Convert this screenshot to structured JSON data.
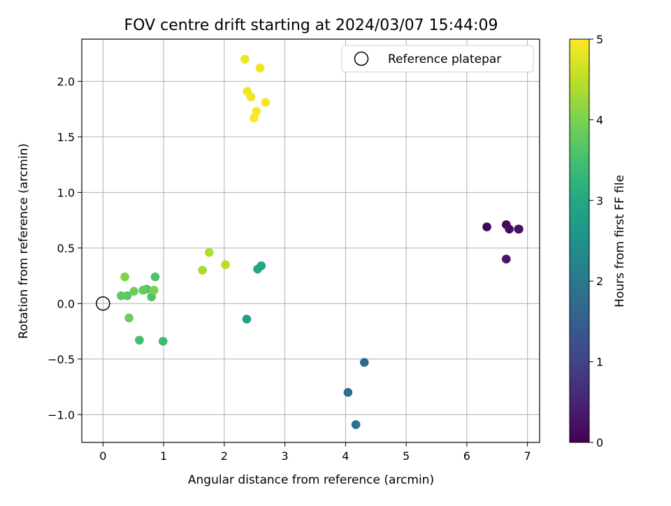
{
  "chart_data": {
    "type": "scatter",
    "title": "FOV centre drift starting at 2024/03/07 15:44:09",
    "xlabel": "Angular distance from reference (arcmin)",
    "ylabel": "Rotation from reference (arcmin)",
    "xlim": [
      -0.35,
      7.2
    ],
    "ylim": [
      -1.25,
      2.38
    ],
    "xticks": [
      0,
      1,
      2,
      3,
      4,
      5,
      6,
      7
    ],
    "xtick_labels": [
      "0",
      "1",
      "2",
      "3",
      "4",
      "5",
      "6",
      "7"
    ],
    "yticks": [
      -1.0,
      -0.5,
      0.0,
      0.5,
      1.0,
      1.5,
      2.0
    ],
    "ytick_labels": [
      "−1.0",
      "−0.5",
      "0.0",
      "0.5",
      "1.0",
      "1.5",
      "2.0"
    ],
    "grid": true,
    "legend": {
      "position": "upper-right",
      "entries": [
        "Reference platepar"
      ]
    },
    "reference_point": {
      "x": 0.0,
      "y": 0.0
    },
    "colorbar": {
      "label": "Hours from first FF file",
      "min": 0,
      "max": 5,
      "ticks": [
        0,
        1,
        2,
        3,
        4,
        5
      ],
      "tick_labels": [
        "0",
        "1",
        "2",
        "3",
        "4",
        "5"
      ],
      "colormap": "viridis"
    },
    "points": [
      {
        "x": 6.33,
        "y": 0.69,
        "c": 0.05
      },
      {
        "x": 6.65,
        "y": 0.71,
        "c": 0.1
      },
      {
        "x": 6.7,
        "y": 0.67,
        "c": 0.15
      },
      {
        "x": 6.85,
        "y": 0.67,
        "c": 0.2
      },
      {
        "x": 6.86,
        "y": 0.67,
        "c": 0.25
      },
      {
        "x": 6.65,
        "y": 0.4,
        "c": 0.3
      },
      {
        "x": 4.31,
        "y": -0.53,
        "c": 1.7
      },
      {
        "x": 4.04,
        "y": -0.8,
        "c": 1.75
      },
      {
        "x": 4.17,
        "y": -1.09,
        "c": 1.8
      },
      {
        "x": 2.37,
        "y": -0.14,
        "c": 2.8
      },
      {
        "x": 2.55,
        "y": 0.31,
        "c": 2.95
      },
      {
        "x": 2.61,
        "y": 0.34,
        "c": 3.0
      },
      {
        "x": 0.99,
        "y": -0.34,
        "c": 3.4
      },
      {
        "x": 0.6,
        "y": -0.33,
        "c": 3.5
      },
      {
        "x": 0.86,
        "y": 0.24,
        "c": 3.55
      },
      {
        "x": 0.8,
        "y": 0.06,
        "c": 3.6
      },
      {
        "x": 0.72,
        "y": 0.13,
        "c": 3.65
      },
      {
        "x": 0.4,
        "y": 0.07,
        "c": 3.7
      },
      {
        "x": 0.3,
        "y": 0.07,
        "c": 3.75
      },
      {
        "x": 0.66,
        "y": 0.12,
        "c": 3.8
      },
      {
        "x": 0.43,
        "y": -0.13,
        "c": 3.85
      },
      {
        "x": 0.51,
        "y": 0.11,
        "c": 3.9
      },
      {
        "x": 0.84,
        "y": 0.12,
        "c": 4.0
      },
      {
        "x": 0.36,
        "y": 0.24,
        "c": 4.05
      },
      {
        "x": 1.64,
        "y": 0.3,
        "c": 4.35
      },
      {
        "x": 1.75,
        "y": 0.46,
        "c": 4.4
      },
      {
        "x": 2.02,
        "y": 0.35,
        "c": 4.45
      },
      {
        "x": 2.34,
        "y": 2.2,
        "c": 4.85
      },
      {
        "x": 2.59,
        "y": 2.12,
        "c": 4.88
      },
      {
        "x": 2.38,
        "y": 1.91,
        "c": 4.9
      },
      {
        "x": 2.44,
        "y": 1.86,
        "c": 4.92
      },
      {
        "x": 2.68,
        "y": 1.81,
        "c": 4.94
      },
      {
        "x": 2.53,
        "y": 1.73,
        "c": 4.96
      },
      {
        "x": 2.49,
        "y": 1.67,
        "c": 4.98
      }
    ]
  }
}
